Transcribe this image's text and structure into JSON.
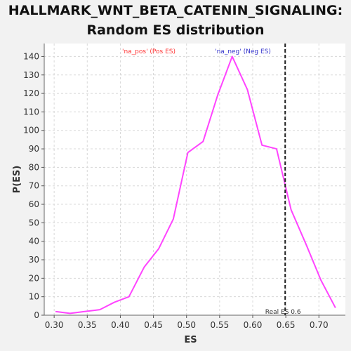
{
  "title_line1": "HALLMARK_WNT_BETA_CATENIN_SIGNALING:",
  "title_line2": "Random ES distribution",
  "colors": {
    "line": "#ff44ff",
    "pos_label": "#ff3333",
    "neg_label": "#3333cc",
    "real_es_line": "#222222",
    "grid": "#d8d8d8",
    "plot_bg": "#ffffff",
    "page_bg": "#f2f2f2"
  },
  "chart_data": {
    "type": "line",
    "title": "HALLMARK_WNT_BETA_CATENIN_SIGNALING: Random ES distribution",
    "xlabel": "ES",
    "ylabel": "P(ES)",
    "xlim": [
      0.285,
      0.74
    ],
    "ylim": [
      0,
      147
    ],
    "x_ticks": [
      0.3,
      0.35,
      0.4,
      0.45,
      0.5,
      0.55,
      0.6,
      0.65,
      0.7
    ],
    "x_tick_labels": [
      "0.30",
      "0.35",
      "0.40",
      "0.45",
      "0.50",
      "0.55",
      "0.60",
      "0.65",
      "0.70"
    ],
    "y_ticks": [
      0,
      10,
      20,
      30,
      40,
      50,
      60,
      70,
      80,
      90,
      100,
      110,
      120,
      130,
      140
    ],
    "grid": true,
    "series": [
      {
        "x": [
          0.302,
          0.324,
          0.346,
          0.369,
          0.391,
          0.413,
          0.436,
          0.458,
          0.48,
          0.502,
          0.525,
          0.547,
          0.569,
          0.592,
          0.614,
          0.636,
          0.658,
          0.681,
          0.703,
          0.725
        ],
        "y": [
          2,
          1,
          2,
          3,
          7,
          10,
          26,
          36,
          52,
          88,
          94,
          119,
          140,
          122,
          92,
          90,
          57,
          38,
          19,
          4
        ]
      }
    ],
    "annotations": {
      "pos_label": "'na_pos' (Pos ES)",
      "neg_label": "'na_neg' (Neg ES)",
      "real_es_label": "Real ES 0.6",
      "real_es_x": 0.649
    }
  }
}
